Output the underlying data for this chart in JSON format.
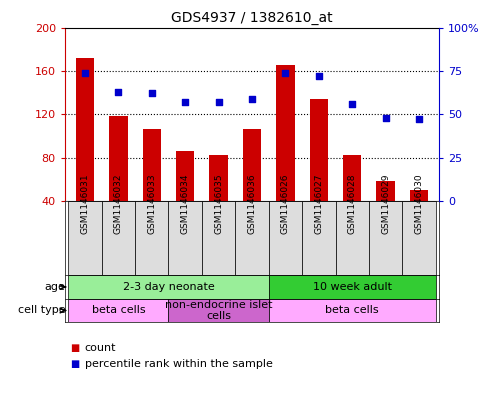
{
  "title": "GDS4937 / 1382610_at",
  "samples": [
    "GSM1146031",
    "GSM1146032",
    "GSM1146033",
    "GSM1146034",
    "GSM1146035",
    "GSM1146036",
    "GSM1146026",
    "GSM1146027",
    "GSM1146028",
    "GSM1146029",
    "GSM1146030"
  ],
  "counts": [
    172,
    118,
    106,
    86,
    82,
    106,
    165,
    134,
    82,
    58,
    50
  ],
  "percentiles": [
    74,
    63,
    62,
    57,
    57,
    59,
    74,
    72,
    56,
    48,
    47
  ],
  "left_ylim": [
    40,
    200
  ],
  "left_yticks": [
    40,
    80,
    120,
    160,
    200
  ],
  "right_ylim": [
    0,
    100
  ],
  "right_yticks": [
    0,
    25,
    50,
    75,
    100
  ],
  "right_yticklabels": [
    "0",
    "25",
    "50",
    "75",
    "100%"
  ],
  "bar_color": "#cc0000",
  "dot_color": "#0000cc",
  "age_groups": [
    {
      "label": "2-3 day neonate",
      "start": 0,
      "end": 6,
      "color": "#99ee99"
    },
    {
      "label": "10 week adult",
      "start": 6,
      "end": 11,
      "color": "#33cc33"
    }
  ],
  "cell_type_groups": [
    {
      "label": "beta cells",
      "start": 0,
      "end": 3,
      "color": "#ffaaff"
    },
    {
      "label": "non-endocrine islet\ncells",
      "start": 3,
      "end": 6,
      "color": "#cc66cc"
    },
    {
      "label": "beta cells",
      "start": 6,
      "end": 11,
      "color": "#ffaaff"
    }
  ],
  "age_label": "age",
  "cell_type_label": "cell type",
  "legend_count_label": "count",
  "legend_percentile_label": "percentile rank within the sample",
  "label_area_color": "#dddddd"
}
